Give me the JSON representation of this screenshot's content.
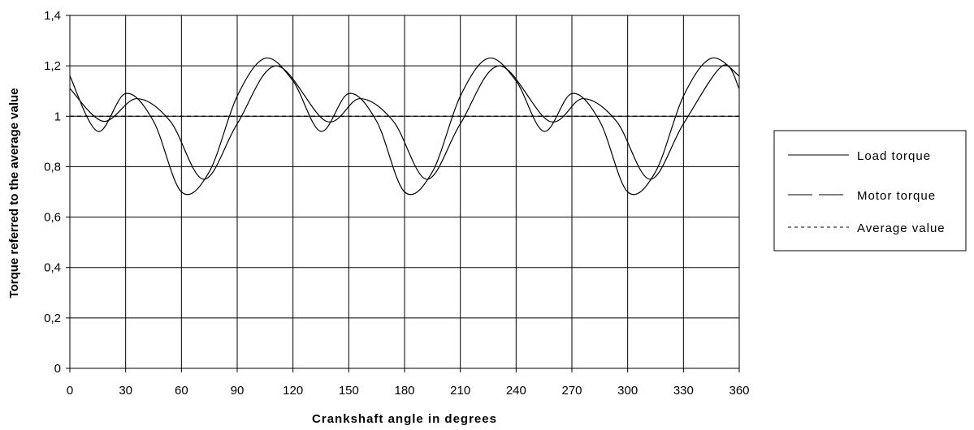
{
  "chart_data": {
    "type": "line",
    "title": "",
    "xlabel": "Crankshaft angle in degrees",
    "ylabel": "Torque referred to the average value",
    "xlim": [
      0,
      360
    ],
    "ylim": [
      0,
      1.4
    ],
    "x_ticks": [
      0,
      30,
      60,
      90,
      120,
      150,
      180,
      210,
      240,
      270,
      300,
      330,
      360
    ],
    "x_tick_labels": [
      "0",
      "30",
      "60",
      "90",
      "120",
      "150",
      "180",
      "210",
      "240",
      "270",
      "300",
      "330",
      "360"
    ],
    "y_ticks": [
      0,
      0.2,
      0.4,
      0.6,
      0.8,
      1.0,
      1.2,
      1.4
    ],
    "y_tick_labels": [
      "0",
      "0,2",
      "0,4",
      "0,6",
      "0,8",
      "1",
      "1,2",
      "1,4"
    ],
    "grid": true,
    "legend_position": "right",
    "series": [
      {
        "name": "Load torque",
        "style": "solid",
        "color": "#000000",
        "x": [
          0,
          15,
          30,
          45,
          60,
          75,
          90,
          105,
          120,
          135,
          150,
          165,
          180,
          195,
          210,
          225,
          240,
          255,
          270,
          285,
          300,
          315,
          330,
          345,
          360
        ],
        "y": [
          1.16,
          0.94,
          1.09,
          0.98,
          0.7,
          0.78,
          1.08,
          1.23,
          1.14,
          0.94,
          1.09,
          0.98,
          0.7,
          0.78,
          1.08,
          1.23,
          1.14,
          0.94,
          1.09,
          0.98,
          0.7,
          0.78,
          1.08,
          1.23,
          1.16
        ]
      },
      {
        "name": "Motor torque",
        "style": "solid",
        "color": "#000000",
        "x": [
          0,
          18,
          36,
          54,
          72,
          90,
          111,
          138,
          156,
          174,
          192,
          210,
          231,
          258,
          276,
          294,
          312,
          330,
          351,
          360
        ],
        "y": [
          1.11,
          0.98,
          1.07,
          0.98,
          0.75,
          0.97,
          1.2,
          0.98,
          1.07,
          0.98,
          0.75,
          0.97,
          1.2,
          0.98,
          1.07,
          0.98,
          0.75,
          0.97,
          1.2,
          1.11
        ]
      },
      {
        "name": "Average value",
        "style": "dashed",
        "color": "#000000",
        "x": [
          0,
          360
        ],
        "y": [
          1.0,
          1.0
        ]
      }
    ]
  }
}
